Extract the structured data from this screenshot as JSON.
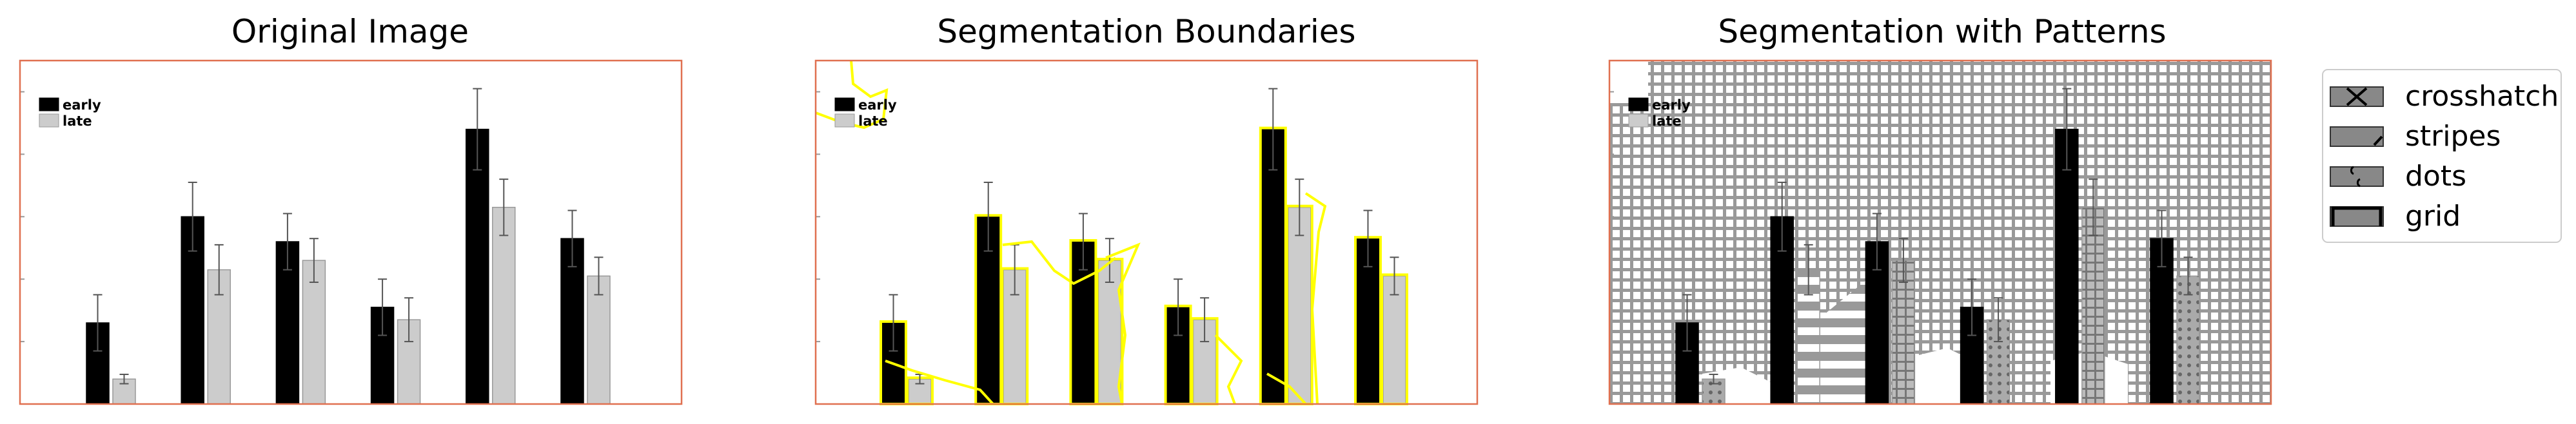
{
  "panels": [
    {
      "title": "Original Image"
    },
    {
      "title": "Segmentation Boundaries"
    },
    {
      "title": "Segmentation with Patterns"
    }
  ],
  "pattern_legend": {
    "items": [
      {
        "label": "crosshatch",
        "icon": "crosshatch-icon"
      },
      {
        "label": "stripes",
        "icon": "stripes-icon"
      },
      {
        "label": "dots",
        "icon": "dots-icon"
      },
      {
        "label": "grid",
        "icon": "grid-icon"
      }
    ]
  },
  "colors": {
    "early": "#000000",
    "late": "#cccccc",
    "frame": "#e07050",
    "boundary": "#ffff00",
    "pattern_fill": "#999999"
  },
  "chart_data": {
    "type": "bar",
    "categories": [
      "",
      "",
      "",
      "",
      "",
      ""
    ],
    "series": [
      {
        "name": "early",
        "values": [
          0.26,
          0.6,
          0.52,
          0.31,
          0.88,
          0.53
        ],
        "errors": [
          0.09,
          0.11,
          0.09,
          0.09,
          0.13,
          0.09
        ]
      },
      {
        "name": "late",
        "values": [
          0.08,
          0.43,
          0.46,
          0.27,
          0.63,
          0.41
        ],
        "errors": [
          0.015,
          0.08,
          0.07,
          0.07,
          0.09,
          0.06
        ]
      }
    ],
    "ylim": [
      0,
      1.1
    ],
    "grid": false,
    "legend": "top-left",
    "error_bars": true
  }
}
